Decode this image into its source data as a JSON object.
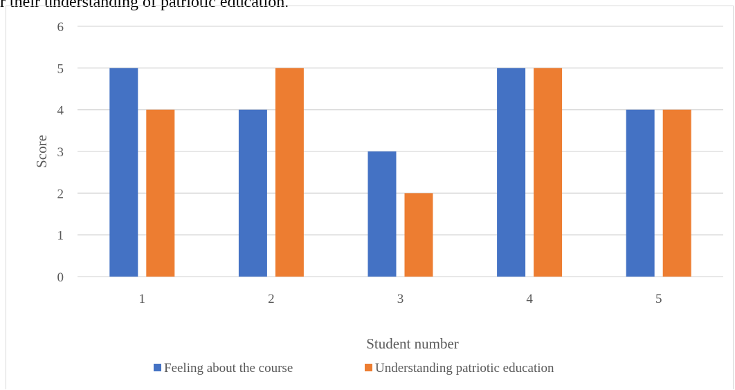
{
  "header": {
    "text": "r their understanding of patriotic education."
  },
  "colors": {
    "series_1": "#4472c4",
    "series_2": "#ed7d31",
    "grid": "#d9d9d9",
    "text": "#595959"
  },
  "chart_data": {
    "type": "bar",
    "categories": [
      "1",
      "2",
      "3",
      "4",
      "5"
    ],
    "series": [
      {
        "name": "Feeling about the course",
        "values": [
          5,
          4,
          3,
          5,
          4
        ]
      },
      {
        "name": "Understanding patriotic education",
        "values": [
          4,
          5,
          2,
          5,
          4
        ]
      }
    ],
    "xlabel": "Student number",
    "ylabel": "Score",
    "ylim": [
      0,
      6
    ],
    "yticks": [
      "0",
      "1",
      "2",
      "3",
      "4",
      "5",
      "6"
    ],
    "grid": true,
    "legend": "bottom"
  }
}
